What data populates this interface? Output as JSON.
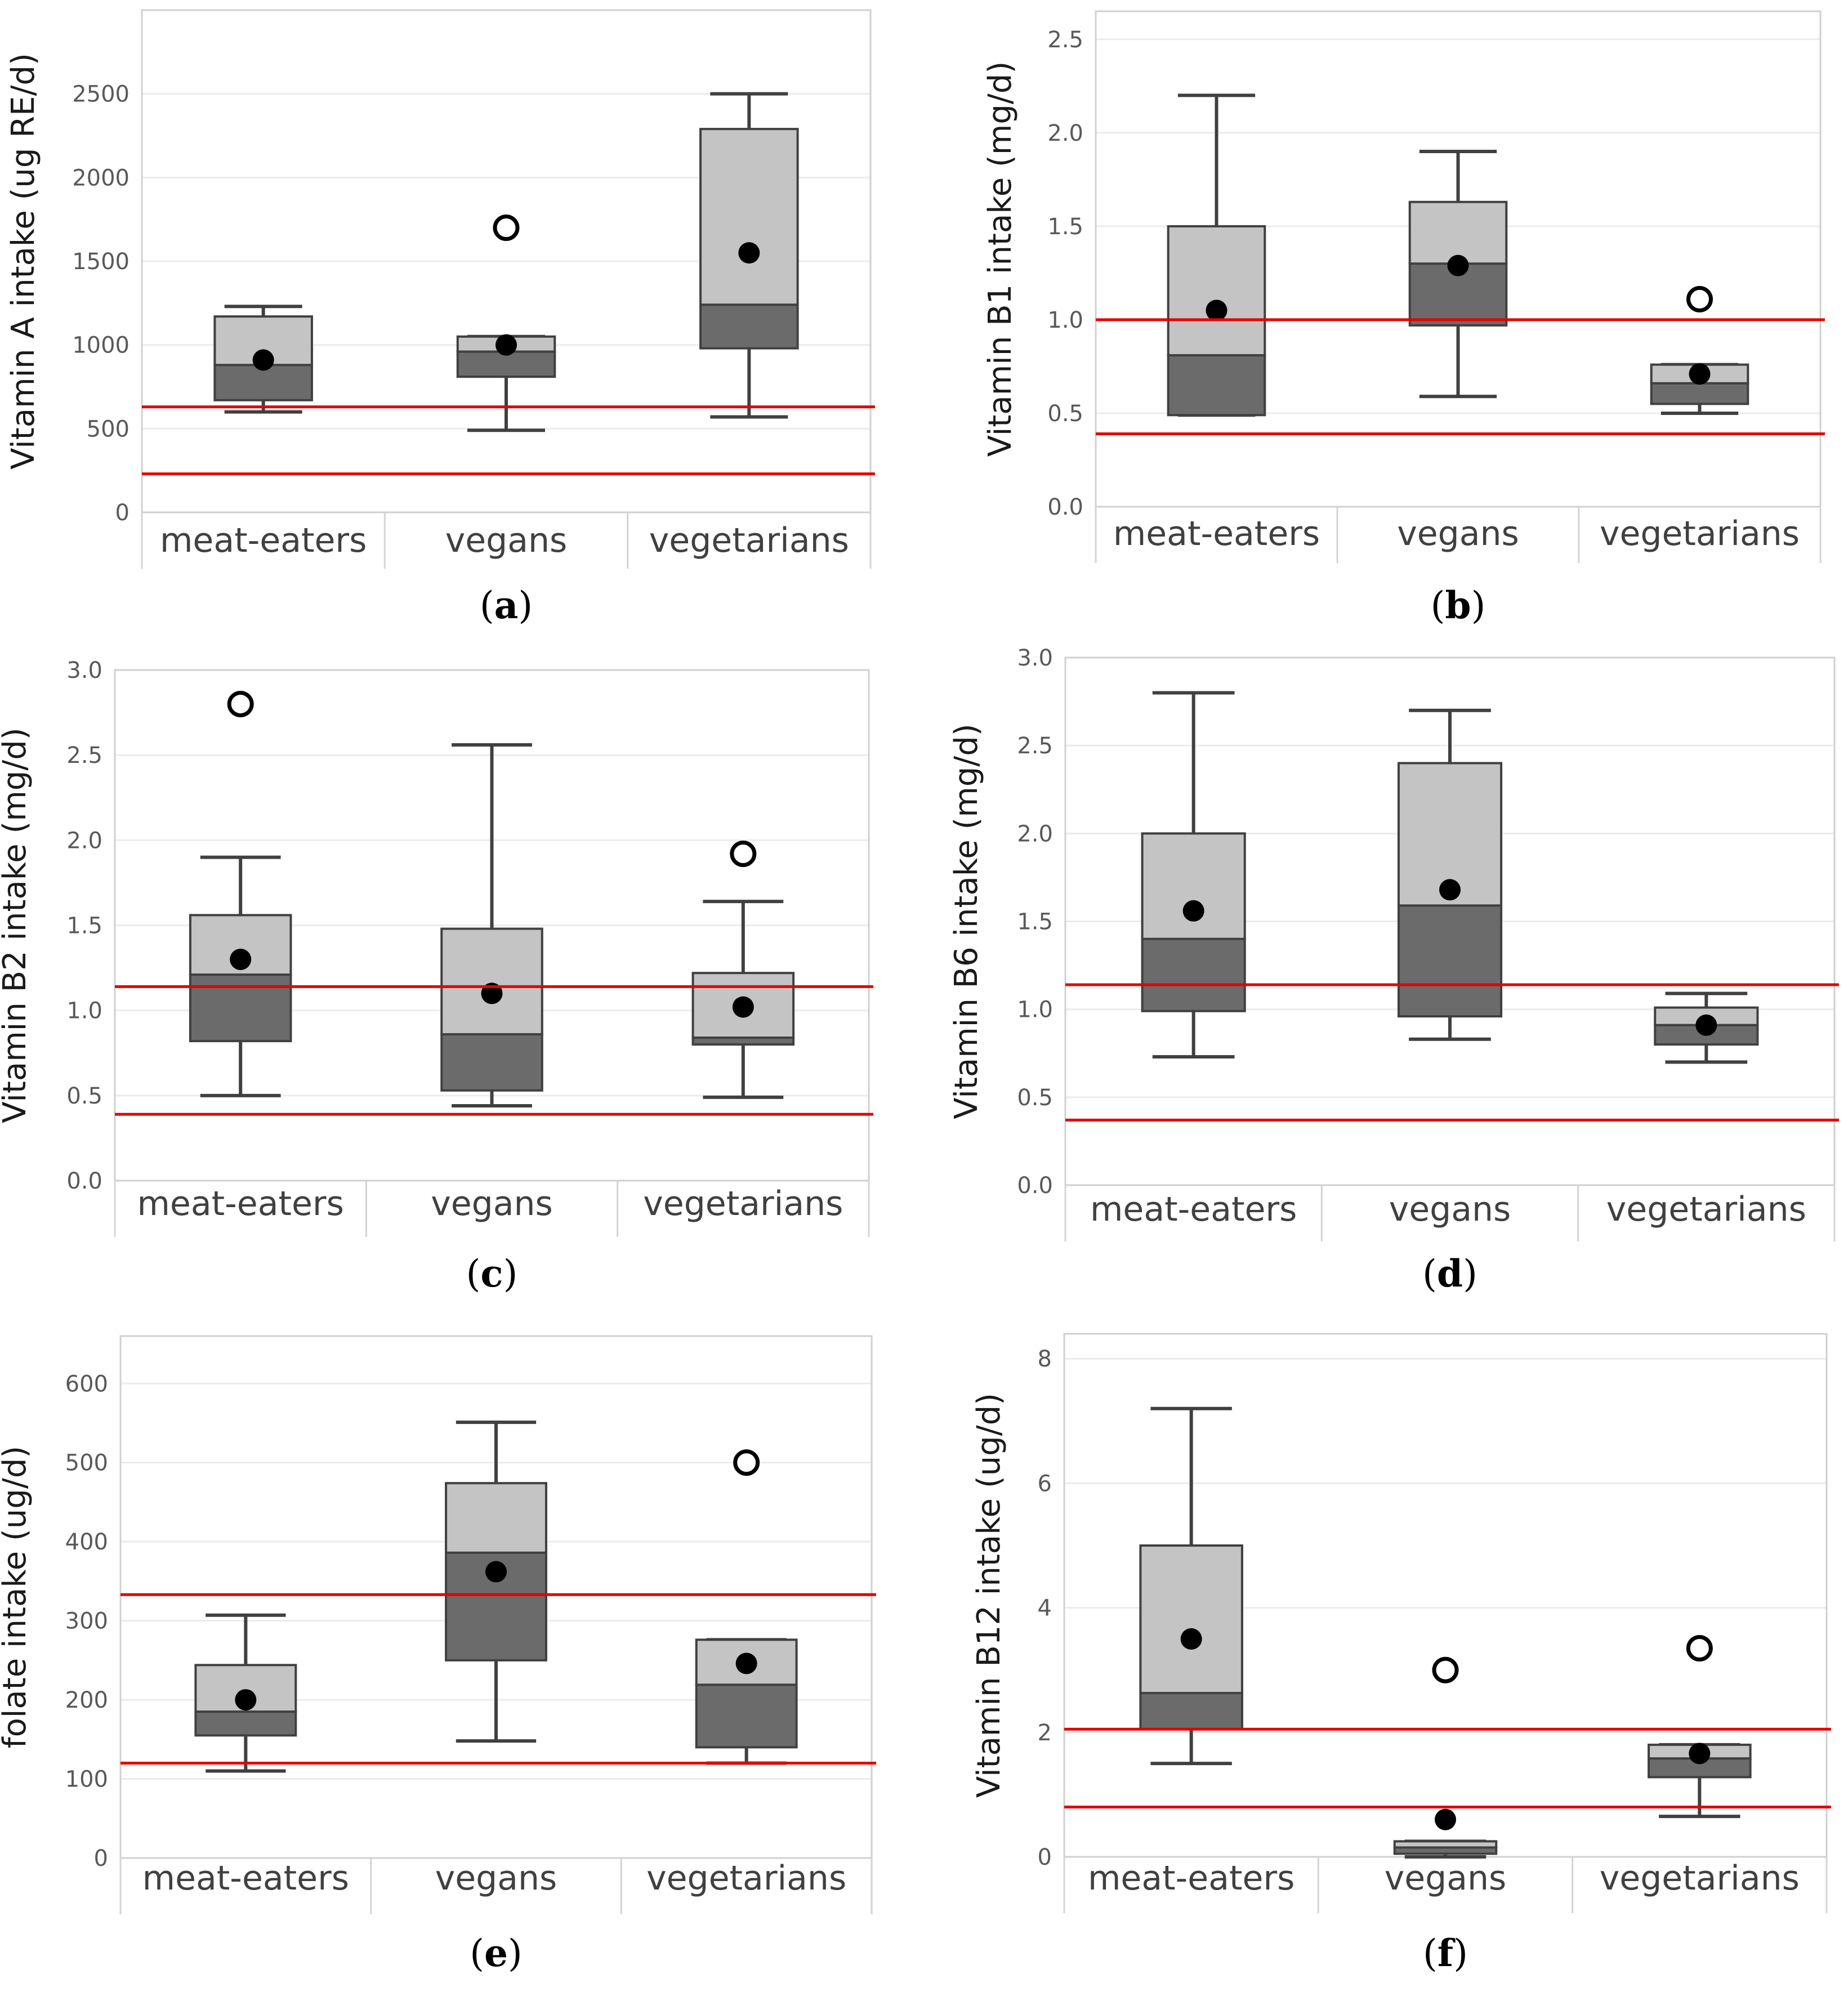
{
  "colors": {
    "upper_box": "#c4c4c4",
    "lower_box": "#6b6b6b",
    "whisker": "#404040",
    "reference_line": "#e60000",
    "mean_marker": "#000000",
    "grid": "#ececec"
  },
  "chart_data": [
    {
      "type": "boxplot",
      "panel_label": "a",
      "ylabel": "Vitamin A intake (ug RE/d)",
      "ylim": [
        0,
        3000
      ],
      "yticks": [
        0,
        500,
        1000,
        1500,
        2000,
        2500
      ],
      "categories": [
        "meat-eaters",
        "vegans",
        "vegetarians"
      ],
      "boxes": [
        {
          "group": "meat-eaters",
          "min": 600,
          "q1": 670,
          "median": 880,
          "q3": 1170,
          "max": 1230,
          "mean": 910,
          "outliers": []
        },
        {
          "group": "vegans",
          "min": 490,
          "q1": 810,
          "median": 960,
          "q3": 1050,
          "max": 1050,
          "mean": 1000,
          "outliers": [
            1700
          ]
        },
        {
          "group": "vegetarians",
          "min": 570,
          "q1": 980,
          "median": 1240,
          "q3": 2290,
          "max": 2500,
          "mean": 1550,
          "outliers": []
        }
      ],
      "reference_lines": [
        630,
        230
      ]
    },
    {
      "type": "boxplot",
      "panel_label": "b",
      "ylabel": "Vitamin B1 intake (mg/d)",
      "ylim": [
        0,
        2.65
      ],
      "yticks": [
        "0.0",
        "0.5",
        "1.0",
        "1.5",
        "2.0",
        "2.5"
      ],
      "categories": [
        "meat-eaters",
        "vegans",
        "vegetarians"
      ],
      "boxes": [
        {
          "group": "meat-eaters",
          "min": 0.49,
          "q1": 0.49,
          "median": 0.81,
          "q3": 1.5,
          "max": 2.2,
          "mean": 1.05,
          "outliers": []
        },
        {
          "group": "vegans",
          "min": 0.59,
          "q1": 0.97,
          "median": 1.3,
          "q3": 1.63,
          "max": 1.9,
          "mean": 1.29,
          "outliers": []
        },
        {
          "group": "vegetarians",
          "min": 0.5,
          "q1": 0.55,
          "median": 0.66,
          "q3": 0.76,
          "max": 0.76,
          "mean": 0.71,
          "outliers": [
            1.11
          ]
        }
      ],
      "reference_lines": [
        1.0,
        0.39
      ]
    },
    {
      "type": "boxplot",
      "panel_label": "c",
      "ylabel": "Vitamin B2 intake (mg/d)",
      "ylim": [
        0,
        3.0
      ],
      "yticks": [
        "0.0",
        "0.5",
        "1.0",
        "1.5",
        "2.0",
        "2.5",
        "3.0"
      ],
      "categories": [
        "meat-eaters",
        "vegans",
        "vegetarians"
      ],
      "boxes": [
        {
          "group": "meat-eaters",
          "min": 0.5,
          "q1": 0.82,
          "median": 1.21,
          "q3": 1.56,
          "max": 1.9,
          "mean": 1.3,
          "outliers": [
            2.8
          ]
        },
        {
          "group": "vegans",
          "min": 0.44,
          "q1": 0.53,
          "median": 0.86,
          "q3": 1.48,
          "max": 2.56,
          "mean": 1.1,
          "outliers": []
        },
        {
          "group": "vegetarians",
          "min": 0.49,
          "q1": 0.8,
          "median": 0.84,
          "q3": 1.22,
          "max": 1.64,
          "mean": 1.02,
          "outliers": [
            1.92
          ]
        }
      ],
      "reference_lines": [
        1.14,
        0.39
      ]
    },
    {
      "type": "boxplot",
      "panel_label": "d",
      "ylabel": "Vitamin B6 intake (mg/d)",
      "ylim": [
        0,
        3.0
      ],
      "yticks": [
        "0.0",
        "0.5",
        "1.0",
        "1.5",
        "2.0",
        "2.5",
        "3.0"
      ],
      "categories": [
        "meat-eaters",
        "vegans",
        "vegetarians"
      ],
      "boxes": [
        {
          "group": "meat-eaters",
          "min": 0.73,
          "q1": 0.99,
          "median": 1.4,
          "q3": 2.0,
          "max": 2.8,
          "mean": 1.56,
          "outliers": []
        },
        {
          "group": "vegans",
          "min": 0.83,
          "q1": 0.96,
          "median": 1.59,
          "q3": 2.4,
          "max": 2.7,
          "mean": 1.68,
          "outliers": []
        },
        {
          "group": "vegetarians",
          "min": 0.7,
          "q1": 0.8,
          "median": 0.91,
          "q3": 1.01,
          "max": 1.09,
          "mean": 0.91,
          "outliers": []
        }
      ],
      "reference_lines": [
        1.14,
        0.37
      ]
    },
    {
      "type": "boxplot",
      "panel_label": "e",
      "ylabel": "folate intake (ug/d)",
      "ylim": [
        0,
        660
      ],
      "yticks": [
        0,
        100,
        200,
        300,
        400,
        500,
        600
      ],
      "categories": [
        "meat-eaters",
        "vegans",
        "vegetarians"
      ],
      "boxes": [
        {
          "group": "meat-eaters",
          "min": 110,
          "q1": 155,
          "median": 185,
          "q3": 244,
          "max": 307,
          "mean": 200,
          "outliers": []
        },
        {
          "group": "vegans",
          "min": 148,
          "q1": 250,
          "median": 386,
          "q3": 474,
          "max": 551,
          "mean": 362,
          "outliers": []
        },
        {
          "group": "vegetarians",
          "min": 120,
          "q1": 140,
          "median": 219,
          "q3": 276,
          "max": 276,
          "mean": 246,
          "outliers": [
            500
          ]
        }
      ],
      "reference_lines": [
        333,
        120
      ]
    },
    {
      "type": "boxplot",
      "panel_label": "f",
      "ylabel": "Vitamin B12 intake (ug/d)",
      "ylim": [
        0,
        8.4
      ],
      "yticks": [
        0,
        2,
        4,
        6,
        8
      ],
      "categories": [
        "meat-eaters",
        "vegans",
        "vegetarians"
      ],
      "boxes": [
        {
          "group": "meat-eaters",
          "min": 1.5,
          "q1": 2.05,
          "median": 2.63,
          "q3": 5.0,
          "max": 7.2,
          "mean": 3.5,
          "outliers": []
        },
        {
          "group": "vegans",
          "min": 0.0,
          "q1": 0.05,
          "median": 0.15,
          "q3": 0.25,
          "max": 0.25,
          "mean": 0.6,
          "outliers": [
            3.0
          ]
        },
        {
          "group": "vegetarians",
          "min": 0.65,
          "q1": 1.28,
          "median": 1.58,
          "q3": 1.8,
          "max": 1.8,
          "mean": 1.66,
          "outliers": [
            3.35
          ]
        }
      ],
      "reference_lines": [
        2.05,
        0.8
      ]
    }
  ]
}
